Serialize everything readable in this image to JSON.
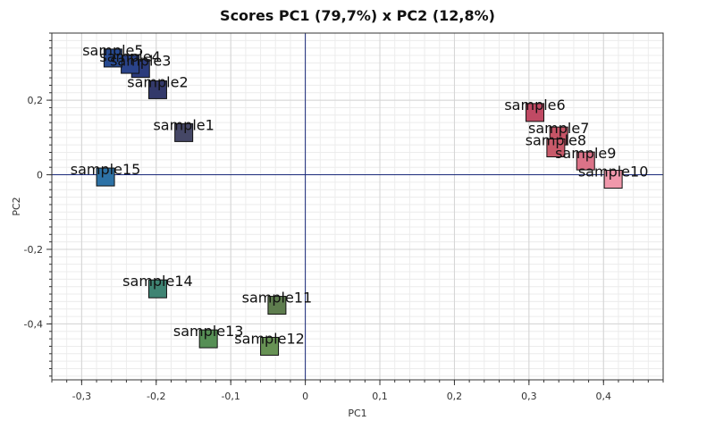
{
  "chart_data": {
    "type": "scatter",
    "title": "Scores PC1 (79,7%) x PC2 (12,8%)",
    "xlabel": "PC1",
    "ylabel": "PC2",
    "xlim": [
      -0.34,
      0.48
    ],
    "ylim": [
      -0.55,
      0.38
    ],
    "xticks": [
      -0.3,
      -0.2,
      -0.1,
      0,
      0.1,
      0.2,
      0.3,
      0.4
    ],
    "xtick_labels": [
      "-0,3",
      "-0,2",
      "-0,1",
      "0",
      "0,1",
      "0,2",
      "0,3",
      "0,4"
    ],
    "yticks": [
      -0.4,
      -0.2,
      0,
      0.2
    ],
    "ytick_labels": [
      "-0,4",
      "-0,2",
      "0",
      "0,2"
    ],
    "grid": true,
    "points": [
      {
        "label": "sample1",
        "x": -0.163,
        "y": 0.113,
        "color": "#454766"
      },
      {
        "label": "sample2",
        "x": -0.198,
        "y": 0.228,
        "color": "#33396a"
      },
      {
        "label": "sample3",
        "x": -0.221,
        "y": 0.285,
        "color": "#2b3b7c"
      },
      {
        "label": "sample4",
        "x": -0.235,
        "y": 0.296,
        "color": "#2a4389"
      },
      {
        "label": "sample5",
        "x": -0.258,
        "y": 0.313,
        "color": "#264990"
      },
      {
        "label": "sample6",
        "x": 0.308,
        "y": 0.167,
        "color": "#c04a64"
      },
      {
        "label": "sample7",
        "x": 0.34,
        "y": 0.104,
        "color": "#c65466"
      },
      {
        "label": "sample8",
        "x": 0.336,
        "y": 0.072,
        "color": "#c85a6a"
      },
      {
        "label": "sample9",
        "x": 0.376,
        "y": 0.037,
        "color": "#db7388"
      },
      {
        "label": "sample10",
        "x": 0.413,
        "y": -0.012,
        "color": "#f098ab"
      },
      {
        "label": "sample11",
        "x": -0.038,
        "y": -0.35,
        "color": "#5e7d4e"
      },
      {
        "label": "sample12",
        "x": -0.048,
        "y": -0.46,
        "color": "#679254"
      },
      {
        "label": "sample13",
        "x": -0.13,
        "y": -0.44,
        "color": "#568f55"
      },
      {
        "label": "sample14",
        "x": -0.198,
        "y": -0.306,
        "color": "#3f8473"
      },
      {
        "label": "sample15",
        "x": -0.268,
        "y": -0.006,
        "color": "#2d72a6"
      }
    ]
  }
}
